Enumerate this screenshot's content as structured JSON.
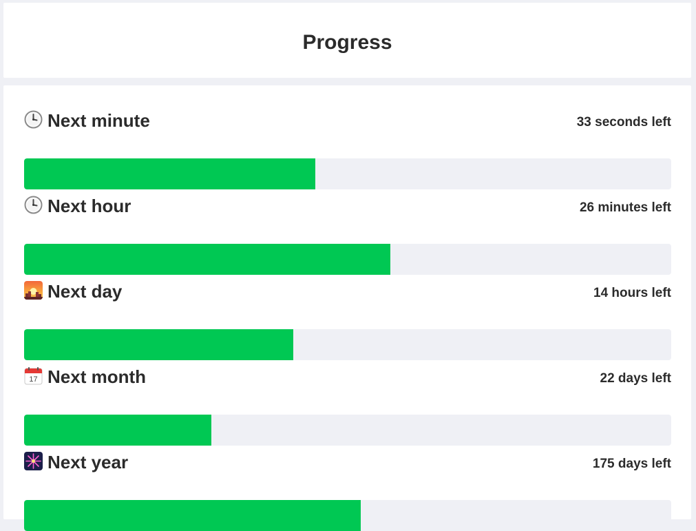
{
  "header": {
    "title": "Progress"
  },
  "colors": {
    "fill": "#00c853",
    "track": "#eff0f5",
    "text": "#2b2b2b"
  },
  "items": [
    {
      "icon": "clock-icon",
      "label": "Next minute",
      "remaining": "33 seconds left",
      "progress": 0.45
    },
    {
      "icon": "clock-icon",
      "label": "Next hour",
      "remaining": "26 minutes left",
      "progress": 0.566
    },
    {
      "icon": "sunset-icon",
      "label": "Next day",
      "remaining": "14 hours left",
      "progress": 0.416
    },
    {
      "icon": "calendar-icon",
      "label": "Next month",
      "remaining": "22 days left",
      "progress": 0.289
    },
    {
      "icon": "fireworks-icon",
      "label": "Next year",
      "remaining": "175 days left",
      "progress": 0.52
    }
  ]
}
